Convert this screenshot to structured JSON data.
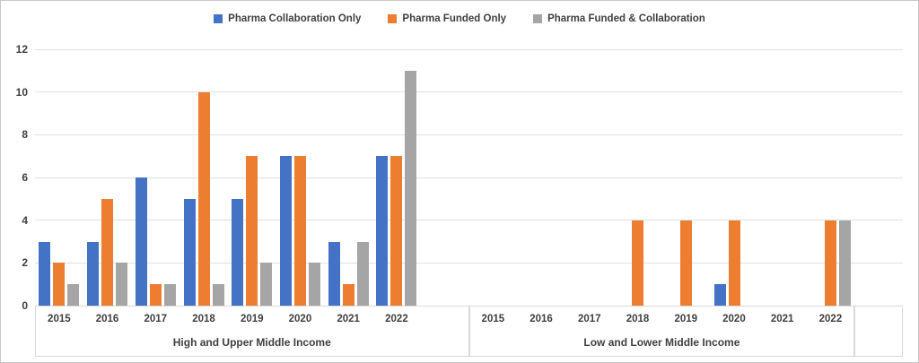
{
  "chart_data": {
    "type": "bar",
    "title": "",
    "legend_position": "top",
    "grid": true,
    "ylim": [
      0,
      12
    ],
    "yticks": [
      0,
      2,
      4,
      6,
      8,
      10,
      12
    ],
    "legend": [
      {
        "key": "pharma-collaboration-only",
        "label": "Pharma Collaboration Only",
        "color": "#4472C4"
      },
      {
        "key": "pharma-funded-only",
        "label": "Pharma Funded Only",
        "color": "#ED7D31"
      },
      {
        "key": "pharma-funded-collaboration",
        "label": "Pharma Funded & Collaboration",
        "color": "#A5A5A5"
      }
    ],
    "groups": [
      {
        "label": "High and Upper Middle Income",
        "categories": [
          "2015",
          "2016",
          "2017",
          "2018",
          "2019",
          "2020",
          "2021",
          "2022"
        ],
        "series": [
          {
            "name": "Pharma Collaboration Only",
            "values": [
              3,
              3,
              6,
              5,
              5,
              7,
              3,
              7
            ]
          },
          {
            "name": "Pharma Funded Only",
            "values": [
              2,
              5,
              1,
              10,
              7,
              7,
              1,
              7
            ]
          },
          {
            "name": "Pharma Funded & Collaboration",
            "values": [
              1,
              2,
              1,
              1,
              2,
              2,
              3,
              11
            ]
          }
        ]
      },
      {
        "label": "Low and Lower Middle Income",
        "categories": [
          "2015",
          "2016",
          "2017",
          "2018",
          "2019",
          "2020",
          "2021",
          "2022"
        ],
        "series": [
          {
            "name": "Pharma Collaboration Only",
            "values": [
              0,
              0,
              0,
              0,
              0,
              1,
              0,
              0
            ]
          },
          {
            "name": "Pharma Funded Only",
            "values": [
              0,
              0,
              0,
              4,
              4,
              4,
              0,
              4
            ]
          },
          {
            "name": "Pharma Funded & Collaboration",
            "values": [
              0,
              0,
              0,
              0,
              0,
              0,
              0,
              4
            ]
          }
        ]
      }
    ],
    "colors": {
      "gridline": "#e0e0e0",
      "axis_border": "#d9d9d9",
      "axis_line": "#d0d0d0",
      "text": "#3f3f3f",
      "background": "#ffffff",
      "chart_border": "#c9c9c9"
    }
  }
}
